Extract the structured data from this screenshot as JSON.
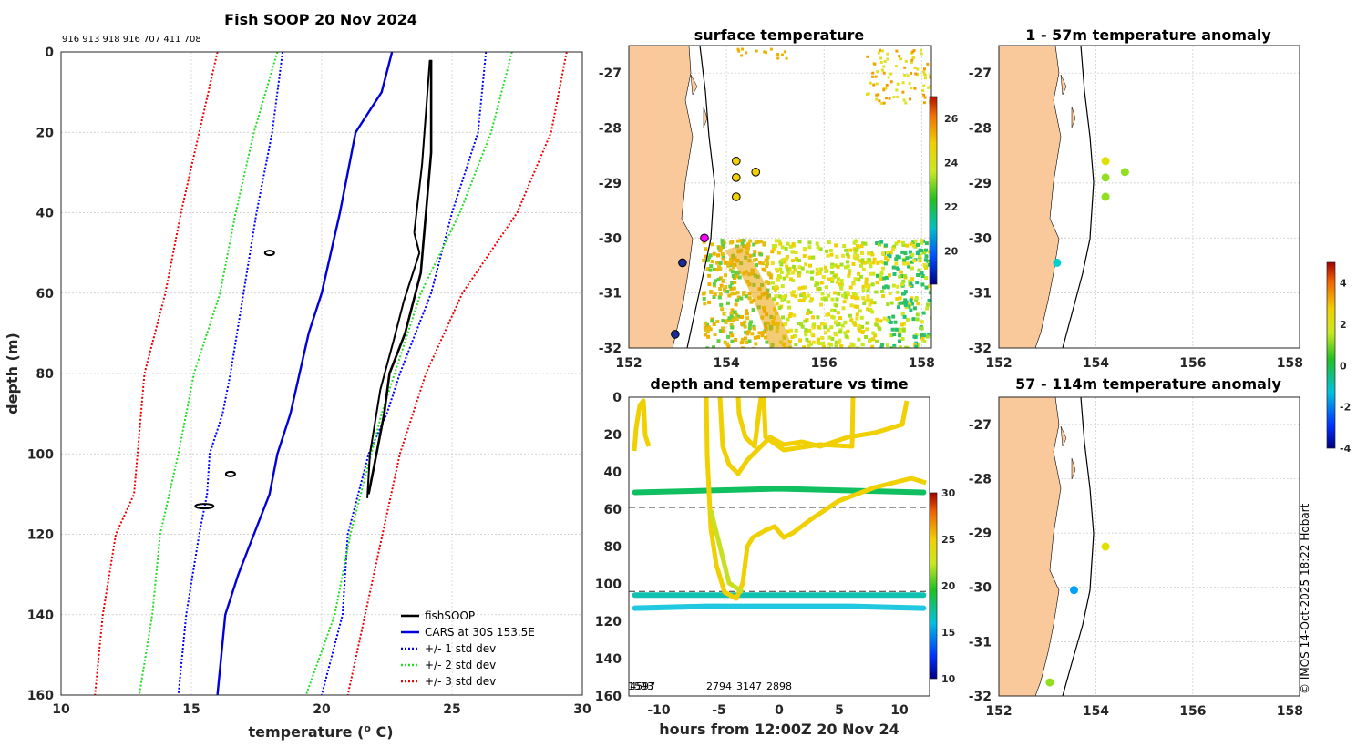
{
  "profile": {
    "title": "Fish SOOP 20 Nov 2024",
    "ids_text": "916 913 918 916 707 411 708",
    "xlabel": "temperature (",
    "xlabel_sup": "o",
    "xlabel_end": " C)",
    "ylabel": "depth (m)",
    "xlim": [
      10,
      30
    ],
    "ylim": [
      0,
      160
    ],
    "xticks": [
      "10",
      "15",
      "20",
      "25",
      "30"
    ],
    "yticks": [
      "0",
      "20",
      "40",
      "60",
      "80",
      "100",
      "120",
      "140",
      "160"
    ],
    "legend": [
      "fishSOOP",
      "CARS at 30S 153.5E",
      "+/- 1 std dev",
      "+/- 2 std dev",
      "+/- 3 std dev"
    ],
    "colors": {
      "fish": "#000000",
      "cars": "#0000dd",
      "std1": "#0000ff",
      "std2": "#22dd22",
      "std3": "#ee0000"
    }
  },
  "sst_map": {
    "title": "surface temperature",
    "xticks": [
      "152",
      "154",
      "156",
      "158"
    ],
    "yticks": [
      "-27",
      "-28",
      "-29",
      "-30",
      "-31",
      "-32"
    ],
    "cbar_ticks": [
      "20",
      "22",
      "24",
      "26"
    ]
  },
  "time_plot": {
    "title": "depth and temperature vs time",
    "xlabel": "hours from 12:00Z 20 Nov 24",
    "xticks": [
      "-10",
      "-5",
      "0",
      "5",
      "10"
    ],
    "yticks": [
      "0",
      "20",
      "40",
      "60",
      "80",
      "100",
      "120",
      "140",
      "160"
    ],
    "cbar_ticks": [
      "10",
      "15",
      "20",
      "25",
      "30"
    ],
    "bottom_labels": [
      "1593",
      "4597",
      "2794",
      "3147",
      "2898"
    ]
  },
  "anom_top": {
    "title": "1 - 57m temperature anomaly",
    "xticks": [
      "152",
      "154",
      "156",
      "158"
    ],
    "yticks": [
      "-27",
      "-28",
      "-29",
      "-30",
      "-31",
      "-32"
    ]
  },
  "anom_bottom": {
    "title": "57 - 114m temperature anomaly",
    "xticks": [
      "152",
      "154",
      "156",
      "158"
    ],
    "yticks": [
      "-27",
      "-28",
      "-29",
      "-30",
      "-31",
      "-32"
    ]
  },
  "anom_cbar": {
    "ticks": [
      "4",
      "2",
      "0",
      "-2",
      "-4"
    ]
  },
  "credit": "© IMOS 14-Oct-2025 18:22 Hobart",
  "chart_data": [
    {
      "type": "line",
      "name": "temperature profile",
      "title": "Fish SOOP 20 Nov 2024",
      "xlabel": "temperature (o C)",
      "ylabel": "depth (m)",
      "xlim": [
        10,
        30
      ],
      "ylim": [
        160,
        0
      ],
      "series": [
        {
          "name": "CARS at 30S 153.5E",
          "temp": [
            22.7,
            22.3,
            21.3,
            20.7,
            20.0,
            19.5,
            18.8,
            18.3,
            18.0,
            17.4,
            16.8,
            16.3,
            16.0
          ],
          "depth": [
            0,
            10,
            20,
            40,
            60,
            70,
            90,
            100,
            110,
            120,
            130,
            140,
            160
          ]
        },
        {
          "name": "+/- 1 std dev low",
          "temp": [
            18.5,
            18.1,
            17.5,
            17.0,
            16.5,
            16.2,
            15.7,
            15.6,
            15.3,
            14.8,
            14.5
          ],
          "depth": [
            0,
            20,
            40,
            60,
            80,
            90,
            100,
            110,
            120,
            140,
            160
          ]
        },
        {
          "name": "+/- 1 std dev high",
          "temp": [
            26.3,
            26.0,
            25.0,
            24.2,
            23.0,
            22.5,
            21.8,
            21.0,
            20.8,
            20.0
          ],
          "depth": [
            0,
            20,
            40,
            60,
            80,
            90,
            100,
            120,
            140,
            160
          ]
        },
        {
          "name": "+/- 2 std dev low",
          "temp": [
            18.3,
            17.4,
            16.7,
            16.1,
            15.1,
            14.5,
            13.8,
            13.5,
            13.0
          ],
          "depth": [
            0,
            20,
            40,
            60,
            80,
            100,
            120,
            140,
            160
          ]
        },
        {
          "name": "+/- 2 std dev high",
          "temp": [
            27.3,
            26.5,
            25.3,
            23.8,
            22.3,
            21.1,
            20.5,
            19.4
          ],
          "depth": [
            0,
            20,
            40,
            60,
            90,
            120,
            140,
            160
          ]
        },
        {
          "name": "+/- 3 std dev low",
          "temp": [
            16.0,
            15.3,
            14.6,
            14.0,
            13.2,
            12.8,
            12.1,
            11.6,
            11.3
          ],
          "depth": [
            0,
            20,
            40,
            60,
            80,
            110,
            120,
            140,
            160
          ]
        },
        {
          "name": "+/- 3 std dev high",
          "temp": [
            29.4,
            28.8,
            27.5,
            25.4,
            24.0,
            23.0,
            22.0,
            21.0
          ],
          "depth": [
            0,
            20,
            40,
            60,
            80,
            100,
            130,
            160
          ]
        },
        {
          "name": "fishSOOP",
          "temp": [
            24.2,
            24.2,
            24.0,
            23.8,
            23.2,
            22.6,
            22.4,
            22.1,
            21.8
          ],
          "depth": [
            2,
            25,
            40,
            55,
            70,
            80,
            90,
            100,
            110
          ]
        }
      ]
    },
    {
      "type": "scatter",
      "name": "surface temperature",
      "xlim": [
        152,
        158
      ],
      "ylim": [
        -32,
        -26.5
      ],
      "colorbar": {
        "label": "",
        "range": [
          18.5,
          27
        ]
      },
      "points": [
        {
          "lon": 154.2,
          "lat": -28.6
        },
        {
          "lon": 154.2,
          "lat": -28.9
        },
        {
          "lon": 154.6,
          "lat": -28.8
        },
        {
          "lon": 154.2,
          "lat": -29.25
        },
        {
          "lon": 153.55,
          "lat": -30.0
        },
        {
          "lon": 153.1,
          "lat": -30.45
        },
        {
          "lon": 152.95,
          "lat": -31.75
        }
      ]
    },
    {
      "type": "line",
      "name": "depth and temperature vs time",
      "xlabel": "hours from 12:00Z 20 Nov 24",
      "xlim": [
        -12.5,
        12.5
      ],
      "ylim": [
        160,
        0
      ],
      "colorbar": {
        "range": [
          10,
          30
        ]
      },
      "series": [
        {
          "name": "reference 60m",
          "hours": [
            -12.5,
            12.5
          ],
          "depth": [
            59,
            59
          ]
        },
        {
          "name": "reference 104m",
          "hours": [
            -12.5,
            12.5
          ],
          "depth": [
            104,
            104
          ]
        },
        {
          "name": "sensor 50m",
          "hours": [
            -12,
            -6,
            0,
            6,
            12
          ],
          "depth": [
            51,
            50,
            49,
            50,
            51
          ]
        },
        {
          "name": "sensor 106m",
          "hours": [
            -12,
            -6,
            0,
            6,
            12
          ],
          "depth": [
            106,
            106,
            106,
            106,
            106
          ]
        },
        {
          "name": "sensor 113m",
          "hours": [
            -12,
            -6,
            0,
            6,
            12
          ],
          "depth": [
            113,
            112,
            112,
            112,
            113
          ]
        }
      ]
    },
    {
      "type": "scatter",
      "name": "1 - 57m temperature anomaly",
      "xlim": [
        152,
        158
      ],
      "ylim": [
        -32,
        -26.5
      ],
      "points": [
        {
          "lon": 154.2,
          "lat": -28.6,
          "anom": 1.5
        },
        {
          "lon": 154.2,
          "lat": -28.9,
          "anom": 1.2
        },
        {
          "lon": 154.6,
          "lat": -28.8,
          "anom": 1.3
        },
        {
          "lon": 154.2,
          "lat": -29.25,
          "anom": 1.3
        },
        {
          "lon": 153.2,
          "lat": -30.45,
          "anom": -0.8
        }
      ]
    },
    {
      "type": "scatter",
      "name": "57 - 114m temperature anomaly",
      "xlim": [
        152,
        158
      ],
      "ylim": [
        -32,
        -26.5
      ],
      "colorbar": {
        "range": [
          -4,
          5
        ]
      },
      "points": [
        {
          "lon": 154.2,
          "lat": -29.25,
          "anom": 1.8
        },
        {
          "lon": 153.55,
          "lat": -30.05,
          "anom": -2.5
        },
        {
          "lon": 153.05,
          "lat": -31.75,
          "anom": 1.2
        }
      ]
    }
  ]
}
